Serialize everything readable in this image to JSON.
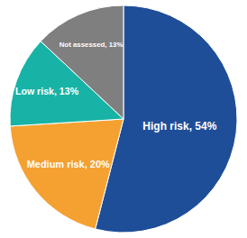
{
  "chart_data": {
    "type": "pie",
    "categories": [
      "High risk",
      "Medium risk",
      "Low risk",
      "Not assessed"
    ],
    "values": [
      54,
      20,
      13,
      13
    ],
    "value_labels": [
      "High risk, 54%",
      "Medium risk, 20%",
      "Low risk, 13%",
      "Not assessed, 13%"
    ],
    "colors": [
      "#1f4e99",
      "#f4a132",
      "#17b3a6",
      "#7f7f7f"
    ],
    "data_labels": true
  }
}
